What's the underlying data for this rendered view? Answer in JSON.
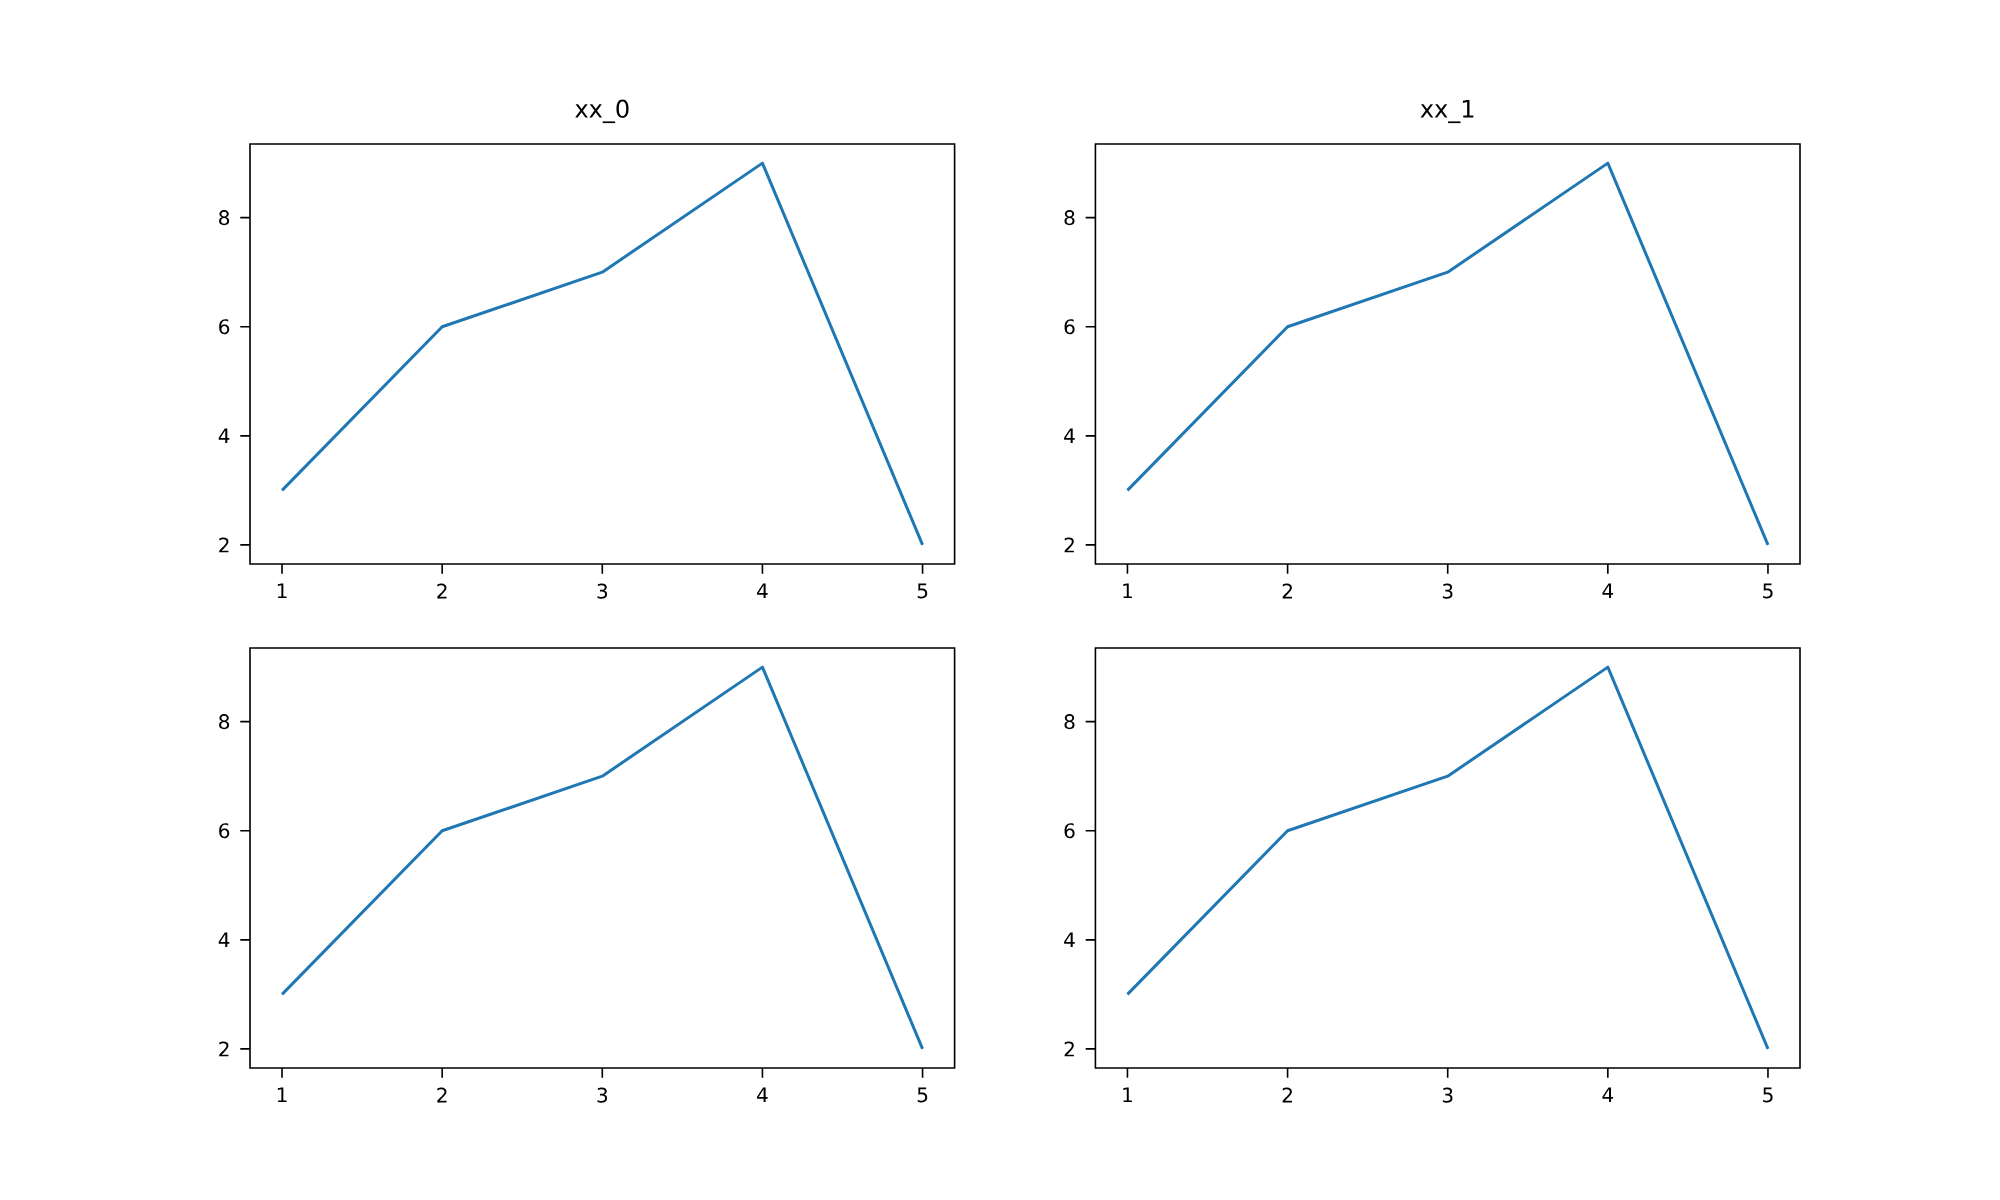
{
  "chart_data": [
    {
      "type": "line",
      "title": "xx_0",
      "x": [
        1,
        2,
        3,
        4,
        5
      ],
      "values": [
        3,
        6,
        7,
        9,
        2
      ],
      "color": "#1f77b4",
      "xlim": [
        0.8,
        5.2
      ],
      "ylim": [
        1.65,
        9.35
      ],
      "xticks": [
        1,
        2,
        3,
        4,
        5
      ],
      "yticks": [
        2,
        4,
        6,
        8
      ]
    },
    {
      "type": "line",
      "title": "xx_1",
      "x": [
        1,
        2,
        3,
        4,
        5
      ],
      "values": [
        3,
        6,
        7,
        9,
        2
      ],
      "color": "#1f77b4",
      "xlim": [
        0.8,
        5.2
      ],
      "ylim": [
        1.65,
        9.35
      ],
      "xticks": [
        1,
        2,
        3,
        4,
        5
      ],
      "yticks": [
        2,
        4,
        6,
        8
      ]
    },
    {
      "type": "line",
      "x": [
        1,
        2,
        3,
        4,
        5
      ],
      "values": [
        3,
        6,
        7,
        9,
        2
      ],
      "color": "#1f77b4",
      "xlim": [
        0.8,
        5.2
      ],
      "ylim": [
        1.65,
        9.35
      ],
      "xticks": [
        1,
        2,
        3,
        4,
        5
      ],
      "yticks": [
        2,
        4,
        6,
        8
      ]
    },
    {
      "type": "line",
      "x": [
        1,
        2,
        3,
        4,
        5
      ],
      "values": [
        3,
        6,
        7,
        9,
        2
      ],
      "color": "#1f77b4",
      "xlim": [
        0.8,
        5.2
      ],
      "ylim": [
        1.65,
        9.35
      ],
      "xticks": [
        1,
        2,
        3,
        4,
        5
      ],
      "yticks": [
        2,
        4,
        6,
        8
      ]
    }
  ]
}
